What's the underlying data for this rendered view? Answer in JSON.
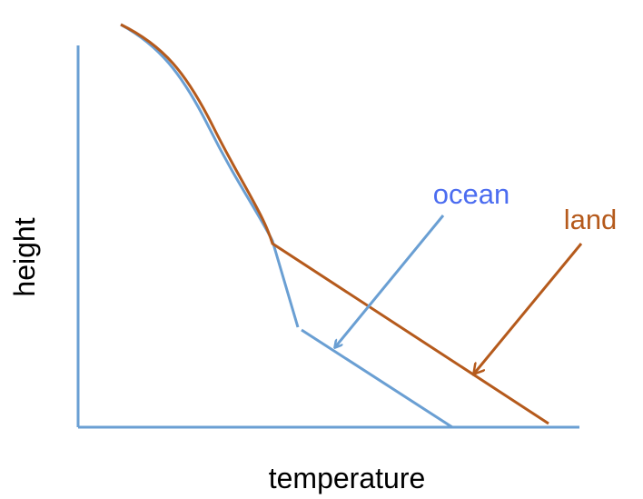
{
  "axes": {
    "y_label": "height",
    "x_label": "temperature"
  },
  "curves": [
    {
      "label": "ocean"
    },
    {
      "label": "land"
    }
  ]
}
